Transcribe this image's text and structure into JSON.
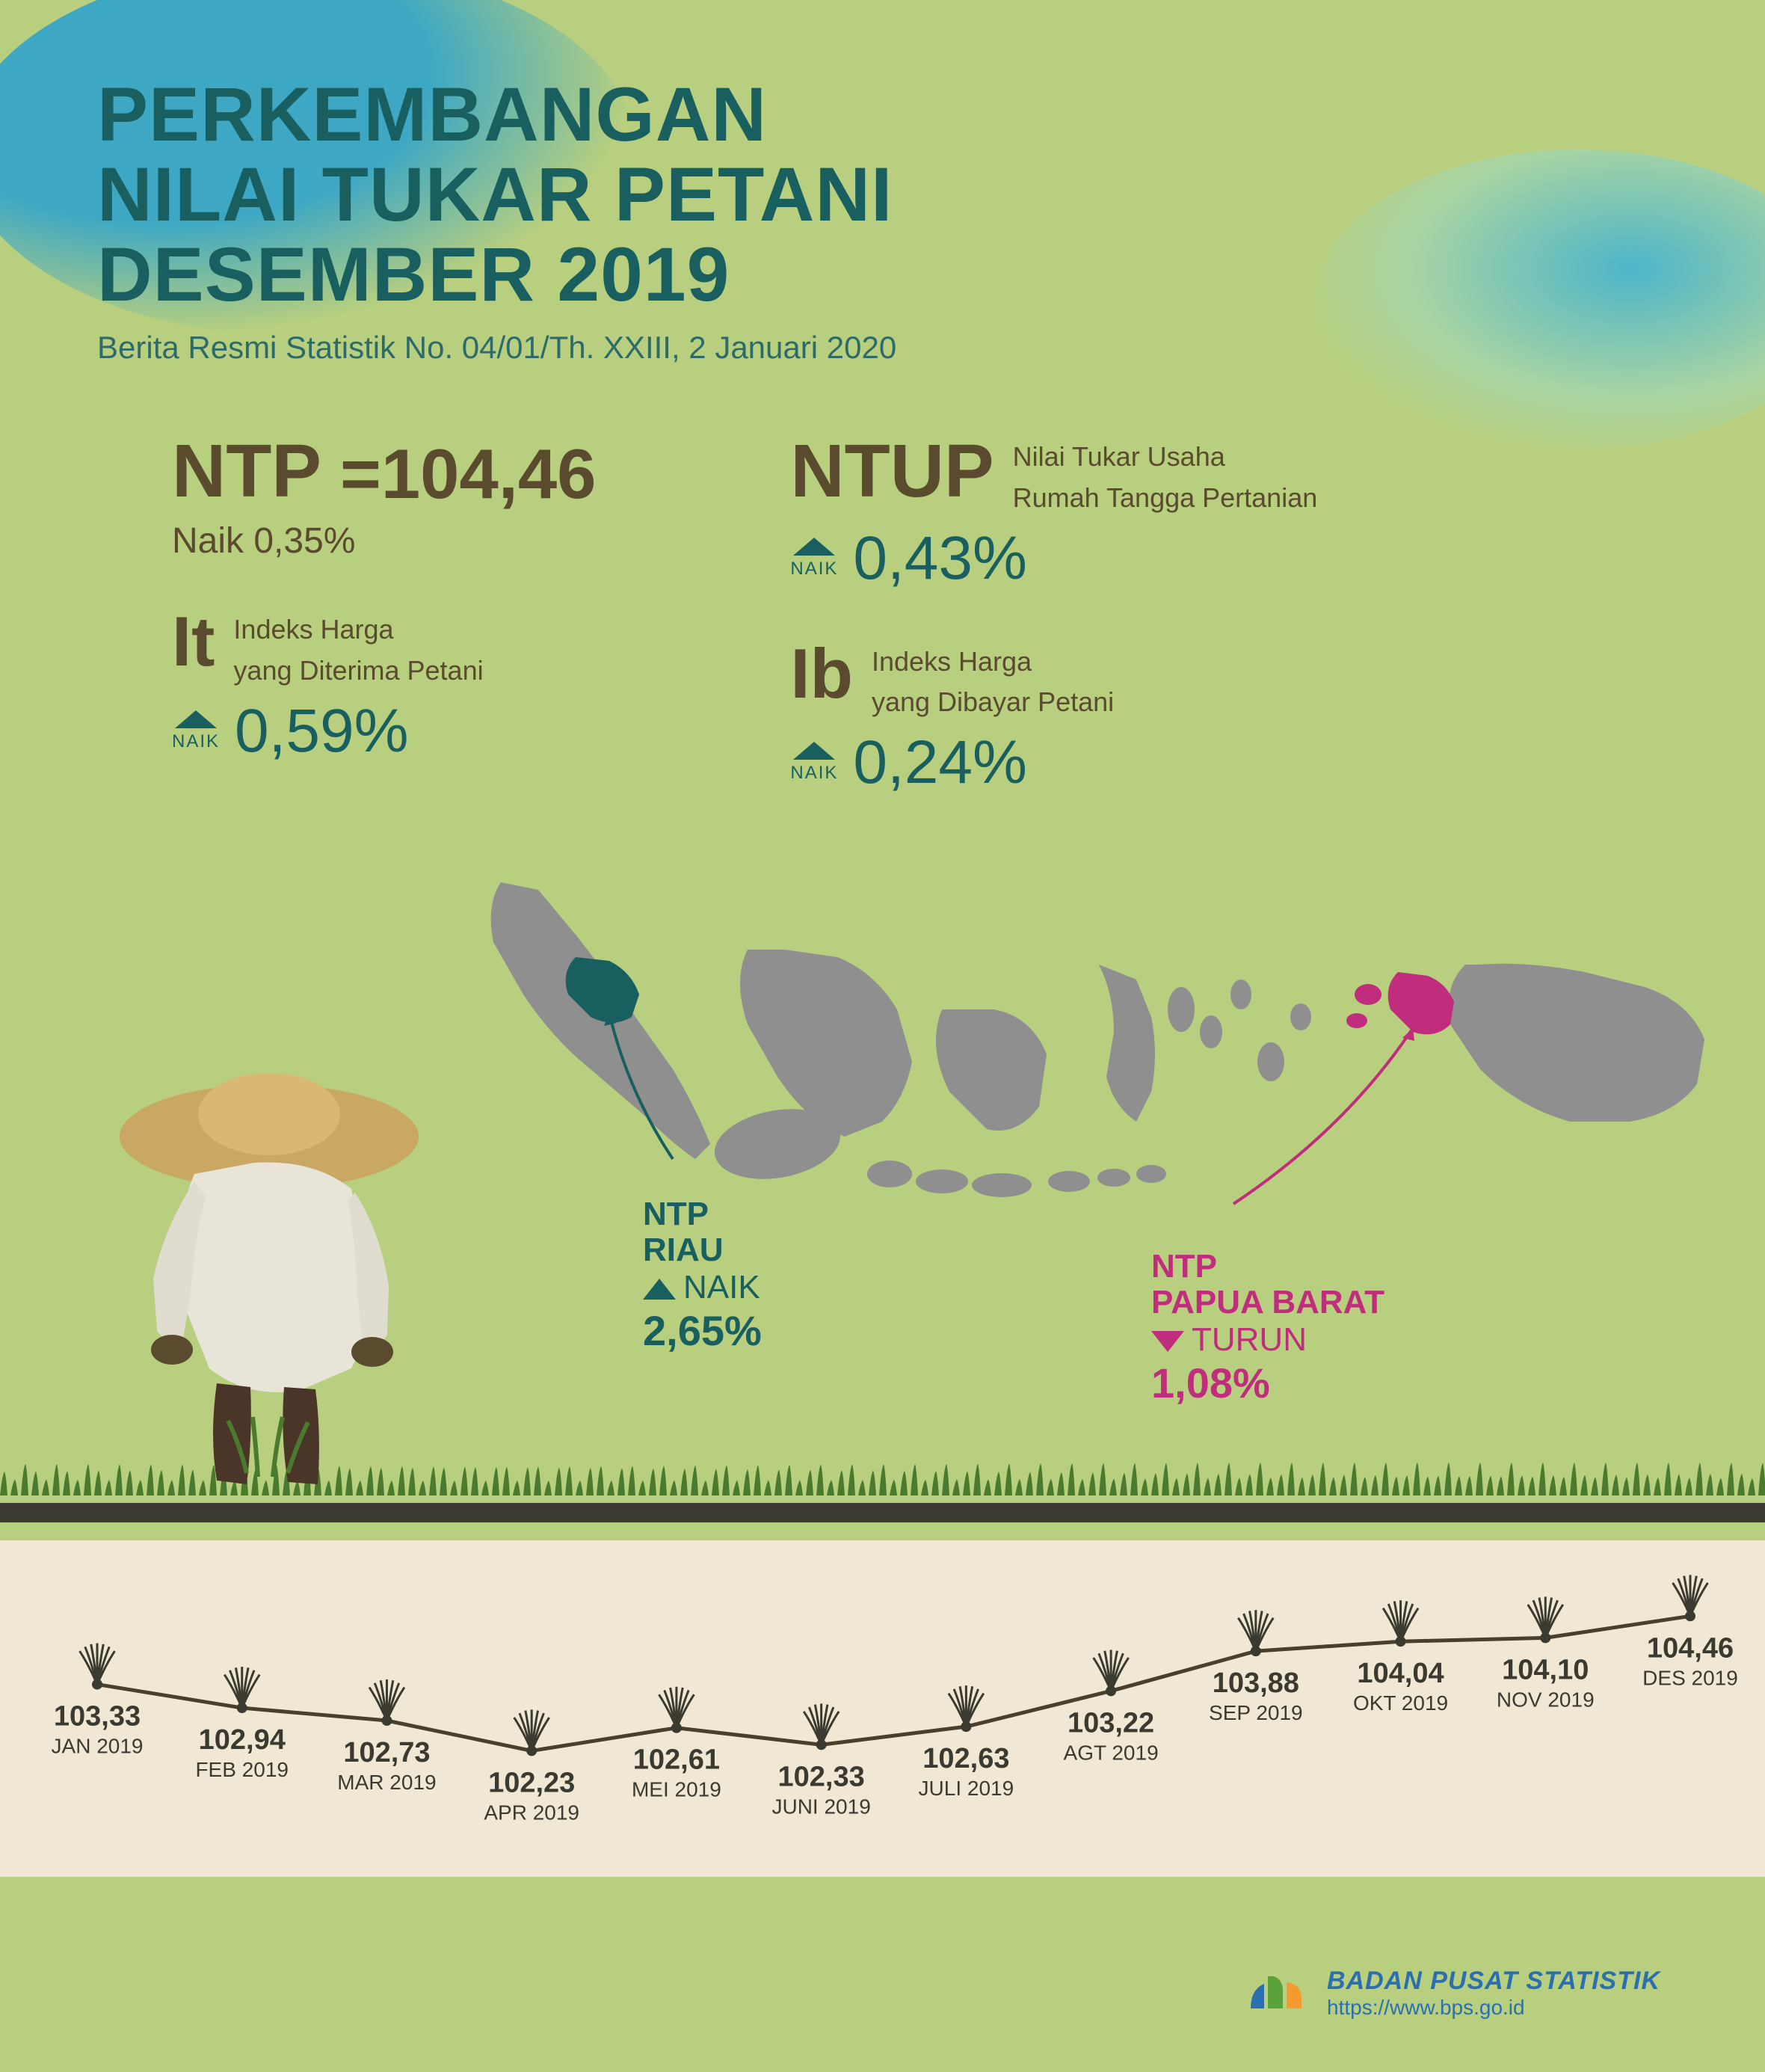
{
  "header": {
    "title_l1": "PERKEMBANGAN",
    "title_l2": "NILAI TUKAR PETANI",
    "title_l3": "DESEMBER 2019",
    "subtitle": "Berita Resmi Statistik No. 04/01/Th. XXIII, 2 Januari 2020"
  },
  "metrics": {
    "ntp": {
      "abbr": "NTP",
      "eq": "=104,46",
      "sub": "Naik 0,35%"
    },
    "ntup": {
      "abbr": "NTUP",
      "desc_l1": "Nilai Tukar Usaha",
      "desc_l2": "Rumah Tangga Pertanian",
      "naik": "NAIK",
      "pct": "0,43%"
    },
    "it": {
      "abbr": "It",
      "desc_l1": "Indeks Harga",
      "desc_l2": "yang Diterima Petani",
      "naik": "NAIK",
      "pct": "0,59%"
    },
    "ib": {
      "abbr": "Ib",
      "desc_l1": "Indeks Harga",
      "desc_l2": "yang Dibayar Petani",
      "naik": "NAIK",
      "pct": "0,24%"
    }
  },
  "map": {
    "riau": {
      "l1": "NTP",
      "l2": "RIAU",
      "dir": "NAIK",
      "pct": "2,65%",
      "color": "#1a5f5f"
    },
    "papua": {
      "l1": "NTP",
      "l2": "PAPUA BARAT",
      "dir": "TURUN",
      "pct": "1,08%",
      "color": "#c02d7d"
    },
    "land_color": "#8f8f8f",
    "riau_fill": "#1a5f5f",
    "papua_fill": "#c02d7d"
  },
  "timeline": {
    "type": "line",
    "background": "#f0e8d4",
    "line_color": "#4a3f2a",
    "line_width": 5,
    "value_fontsize": 38,
    "label_fontsize": 28,
    "ymin": 102.0,
    "ymax": 104.6,
    "points": [
      {
        "value": "103,33",
        "label": "JAN 2019",
        "num": 103.33
      },
      {
        "value": "102,94",
        "label": "FEB 2019",
        "num": 102.94
      },
      {
        "value": "102,73",
        "label": "MAR 2019",
        "num": 102.73
      },
      {
        "value": "102,23",
        "label": "APR 2019",
        "num": 102.23
      },
      {
        "value": "102,61",
        "label": "MEI 2019",
        "num": 102.61
      },
      {
        "value": "102,33",
        "label": "JUNI 2019",
        "num": 102.33
      },
      {
        "value": "102,63",
        "label": "JULI 2019",
        "num": 102.63
      },
      {
        "value": "103,22",
        "label": "AGT 2019",
        "num": 103.22
      },
      {
        "value": "103,88",
        "label": "SEP 2019",
        "num": 103.88
      },
      {
        "value": "104,04",
        "label": "OKT 2019",
        "num": 104.04
      },
      {
        "value": "104,10",
        "label": "NOV 2019",
        "num": 104.1
      },
      {
        "value": "104,46",
        "label": "DES 2019",
        "num": 104.46
      }
    ]
  },
  "footer": {
    "name": "BADAN PUSAT STATISTIK",
    "url": "https://www.bps.go.id",
    "logo_colors": {
      "blue": "#2b6fb0",
      "green": "#5aa33a",
      "orange": "#f59a2e"
    }
  },
  "colors": {
    "bg": "#b7cf7f",
    "water1": "#3ea8c4",
    "title": "#1a5f5f",
    "brown": "#5a4a2e"
  }
}
